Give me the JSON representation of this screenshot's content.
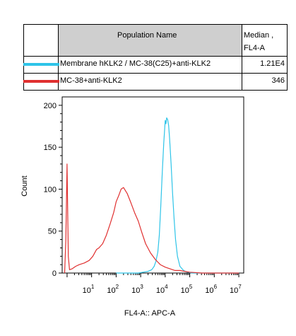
{
  "legend_table": {
    "header_population": "Population Name",
    "header_median_line1": "Median ,",
    "header_median_line2": "FL4-A",
    "rows": [
      {
        "name": "Membrane hKLK2 / MC-38(C25)+anti-KLK2",
        "median": "1.21E4",
        "color": "#2ec4e8"
      },
      {
        "name": "MC-38+anti-KLK2",
        "median": "346",
        "color": "#e03030"
      }
    ]
  },
  "chart_data": {
    "type": "line",
    "xlabel": "FL4-A:: APC-A",
    "ylabel": "Count",
    "x_scale": "log",
    "xlim_log10": [
      -0.2,
      7.2
    ],
    "ylim": [
      0,
      210
    ],
    "y_ticks": [
      0,
      50,
      100,
      150,
      200
    ],
    "x_tick_labels": [
      {
        "base": "10",
        "exp": "1"
      },
      {
        "base": "10",
        "exp": "2"
      },
      {
        "base": "10",
        "exp": "3"
      },
      {
        "base": "10",
        "exp": "4"
      },
      {
        "base": "10",
        "exp": "5"
      },
      {
        "base": "10",
        "exp": "6"
      },
      {
        "base": "10",
        "exp": "7"
      }
    ],
    "series": [
      {
        "name": "Membrane hKLK2 / MC-38(C25)+anti-KLK2",
        "color": "#2ec4e8",
        "x_log10": [
          2.0,
          2.5,
          2.9,
          3.1,
          3.3,
          3.45,
          3.55,
          3.62,
          3.7,
          3.76,
          3.82,
          3.88,
          3.94,
          4.0,
          4.03,
          4.06,
          4.1,
          4.14,
          4.18,
          4.24,
          4.3,
          4.36,
          4.42,
          4.5,
          4.6,
          4.75,
          4.9,
          5.1,
          5.5,
          6.0,
          6.5,
          7.0
        ],
        "y": [
          0,
          0,
          0,
          1,
          2,
          4,
          8,
          14,
          25,
          45,
          80,
          120,
          155,
          182,
          178,
          185,
          183,
          176,
          160,
          130,
          95,
          65,
          40,
          20,
          8,
          3,
          1,
          0,
          0,
          0,
          0,
          0
        ]
      },
      {
        "name": "MC-38+anti-KLK2",
        "color": "#e03030",
        "x_log10": [
          -0.1,
          -0.05,
          0.0,
          0.05,
          0.1,
          0.2,
          0.35,
          0.5,
          0.7,
          0.9,
          1.05,
          1.2,
          1.3,
          1.45,
          1.6,
          1.75,
          1.9,
          2.0,
          2.1,
          2.2,
          2.3,
          2.45,
          2.6,
          2.75,
          2.9,
          3.05,
          3.2,
          3.4,
          3.6,
          3.8,
          4.0,
          4.2,
          4.4,
          4.6,
          4.8,
          5.0,
          5.5,
          6.0,
          7.0
        ],
        "y": [
          0,
          40,
          130,
          20,
          4,
          5,
          8,
          10,
          12,
          15,
          20,
          28,
          30,
          35,
          45,
          58,
          72,
          85,
          92,
          100,
          102,
          95,
          84,
          72,
          62,
          48,
          35,
          24,
          16,
          10,
          7,
          5,
          3,
          3,
          2,
          1,
          0,
          0,
          0
        ]
      }
    ]
  }
}
